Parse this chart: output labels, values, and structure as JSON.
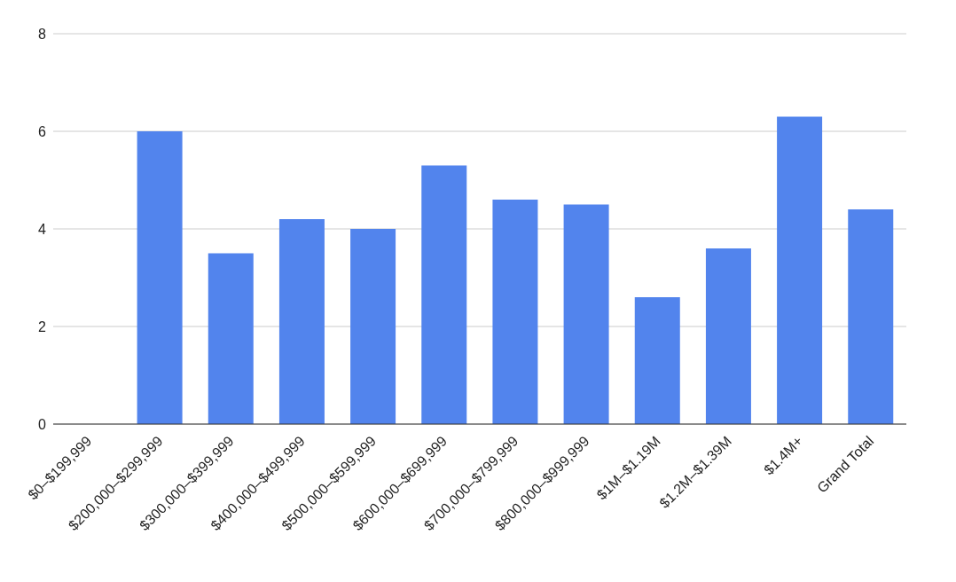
{
  "chart_data": {
    "type": "bar",
    "categories": [
      "$0–$199,999",
      "$200,000–$299,999",
      "$300,000–$399,999",
      "$400,000–$499,999",
      "$500,000–$599,999",
      "$600,000–$699,999",
      "$700,000–$799,999",
      "$800,000–$999,999",
      "$1M–$1.19M",
      "$1.2M–$1.39M",
      "$1.4M+",
      "Grand Total"
    ],
    "values": [
      0,
      6.0,
      3.5,
      4.2,
      4.0,
      5.3,
      4.6,
      4.5,
      2.6,
      3.6,
      6.3,
      4.4
    ],
    "color": "#5284ed",
    "ylim": [
      0,
      8
    ],
    "yticks": [
      0,
      2,
      4,
      6,
      8
    ],
    "grid": "y"
  }
}
